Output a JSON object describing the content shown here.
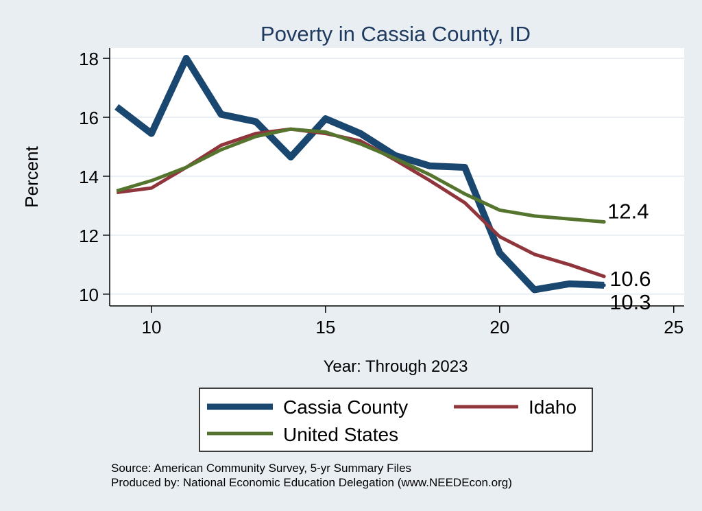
{
  "chart_data": {
    "type": "line",
    "title": "Poverty in Cassia County, ID",
    "xlabel": "Year: Through 2023",
    "ylabel": "Percent",
    "xlim": [
      8.8,
      25.3
    ],
    "ylim": [
      9.6,
      18.35
    ],
    "xticks": [
      "10",
      "15",
      "20",
      "25"
    ],
    "yticks": [
      "10",
      "12",
      "14",
      "16",
      "18"
    ],
    "x": [
      9,
      10,
      11,
      12,
      13,
      14,
      15,
      16,
      17,
      18,
      19,
      20,
      21,
      22,
      23
    ],
    "series": [
      {
        "name": "Cassia County",
        "color": "#1a476f",
        "values": [
          16.35,
          15.45,
          18.0,
          16.1,
          15.85,
          14.65,
          15.95,
          15.45,
          14.7,
          14.35,
          14.3,
          11.4,
          10.15,
          10.35,
          10.3
        ],
        "end_label": "10.3"
      },
      {
        "name": "Idaho",
        "color": "#90353b",
        "values": [
          13.45,
          13.6,
          14.3,
          15.05,
          15.45,
          15.6,
          15.45,
          15.2,
          14.55,
          13.85,
          13.1,
          11.95,
          11.35,
          11.0,
          10.6
        ],
        "end_label": "10.6"
      },
      {
        "name": "United States",
        "color": "#55752f",
        "values": [
          13.5,
          13.85,
          14.3,
          14.9,
          15.35,
          15.6,
          15.5,
          15.1,
          14.6,
          14.05,
          13.4,
          12.85,
          12.65,
          12.55,
          12.45
        ],
        "end_label": "12.4"
      }
    ],
    "legend": {
      "position": "bottom",
      "entries": [
        "Cassia County",
        "Idaho",
        "United States"
      ]
    },
    "grid": true,
    "notes": [
      "Source: American Community Survey, 5-yr Summary Files",
      "Produced by: National Economic Education Delegation (www.NEEDEcon.org)"
    ]
  }
}
